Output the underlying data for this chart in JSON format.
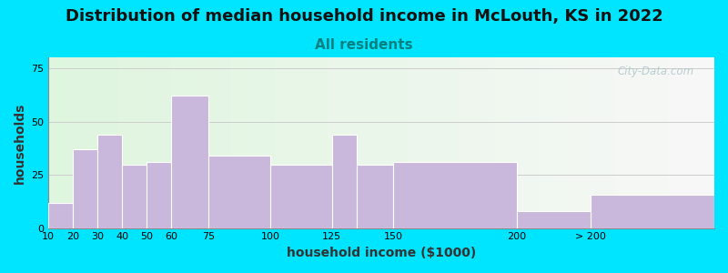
{
  "title": "Distribution of median household income in McLouth, KS in 2022",
  "subtitle": "All residents",
  "xlabel": "household income ($1000)",
  "ylabel": "households",
  "bar_left_edges": [
    10,
    20,
    30,
    40,
    50,
    60,
    75,
    100,
    125,
    135,
    150,
    200,
    230
  ],
  "bar_widths": [
    10,
    10,
    10,
    10,
    10,
    15,
    25,
    25,
    10,
    15,
    50,
    30,
    50
  ],
  "bar_heights": [
    12,
    37,
    44,
    30,
    31,
    62,
    34,
    30,
    44,
    30,
    31,
    8,
    16
  ],
  "bar_color": "#c9b8dc",
  "bar_edge_color": "#ffffff",
  "ylim": [
    0,
    80
  ],
  "yticks": [
    0,
    25,
    50,
    75
  ],
  "xtick_labels": [
    "10",
    "20",
    "30",
    "40",
    "50",
    "60",
    "75",
    "100",
    "125",
    "150",
    "200",
    "> 200"
  ],
  "xtick_positions": [
    10,
    20,
    30,
    40,
    50,
    60,
    75,
    100,
    125,
    150,
    200,
    230
  ],
  "xlim": [
    10,
    280
  ],
  "background_outer": "#00e5ff",
  "title_fontsize": 13,
  "subtitle_fontsize": 11,
  "subtitle_color": "#008080",
  "axis_label_fontsize": 10,
  "watermark_text": "City-Data.com",
  "watermark_color": "#b0c4c8"
}
